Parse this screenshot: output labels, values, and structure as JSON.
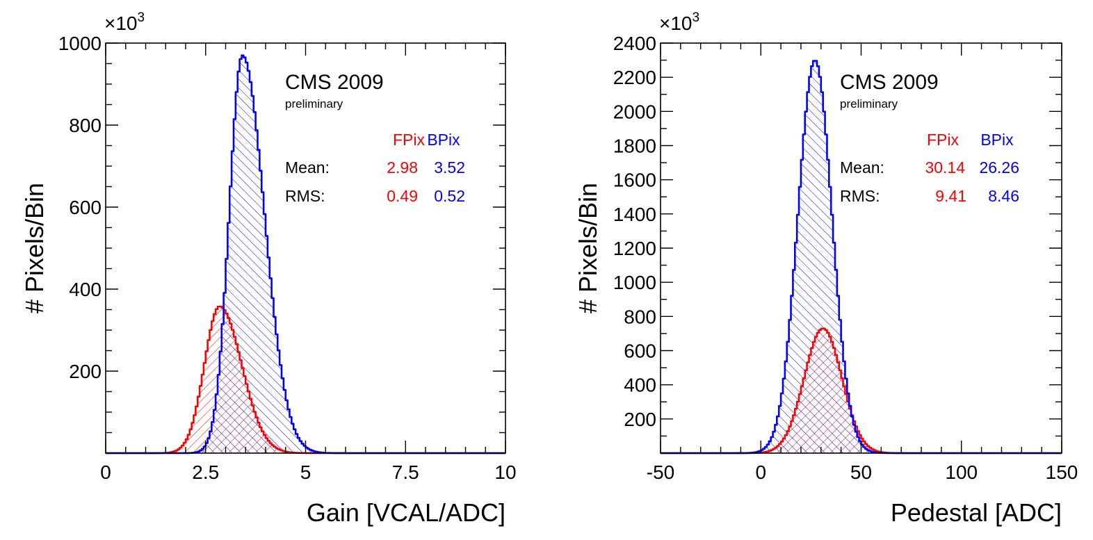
{
  "chart_data": [
    {
      "type": "histogram",
      "title": "CMS 2009",
      "subtitle": "preliminary",
      "xlabel": "Gain [VCAL/ADC]",
      "ylabel": "# Pixels/Bin",
      "y_multiplier": "×10",
      "y_multiplier_exp": "3",
      "xlim": [
        0,
        10
      ],
      "ylim": [
        0,
        1000
      ],
      "x_ticks": [
        0,
        2.5,
        5,
        7.5,
        10
      ],
      "x_tick_labels": [
        "0",
        "2.5",
        "5",
        "7.5",
        "10"
      ],
      "y_ticks": [
        200,
        400,
        600,
        800,
        1000
      ],
      "y_tick_labels": [
        "200",
        "400",
        "600",
        "800",
        "1000"
      ],
      "stats_header_label": "",
      "stats_rows": [
        "Mean:",
        "RMS:"
      ],
      "series": [
        {
          "name": "FPix",
          "color": "#ff0000",
          "peak": 358,
          "mean_label": "2.98",
          "rms_label": "0.49",
          "mean": 2.98,
          "rms": 0.49
        },
        {
          "name": "BPix",
          "color": "#0000ff",
          "peak": 970,
          "mean_label": "3.52",
          "rms_label": "0.52",
          "mean": 3.52,
          "rms": 0.52
        }
      ],
      "curves": [
        {
          "name": "FPix",
          "mode": 2.85,
          "sigmaL": 0.38,
          "sigmaR": 0.55
        },
        {
          "name": "BPix",
          "mode": 3.42,
          "sigmaL": 0.33,
          "sigmaR": 0.55
        }
      ]
    },
    {
      "type": "histogram",
      "title": "CMS 2009",
      "subtitle": "preliminary",
      "xlabel": "Pedestal [ADC]",
      "ylabel": "# Pixels/Bin",
      "y_multiplier": "×10",
      "y_multiplier_exp": "3",
      "xlim": [
        -50,
        150
      ],
      "ylim": [
        0,
        2400
      ],
      "x_ticks": [
        -50,
        0,
        50,
        100,
        150
      ],
      "x_tick_labels": [
        "-50",
        "0",
        "50",
        "100",
        "150"
      ],
      "y_ticks": [
        200,
        400,
        600,
        800,
        1000,
        1200,
        1400,
        1600,
        1800,
        2000,
        2200,
        2400
      ],
      "y_tick_labels": [
        "200",
        "400",
        "600",
        "800",
        "1000",
        "1200",
        "1400",
        "1600",
        "1800",
        "2000",
        "2200",
        "2400"
      ],
      "stats_rows": [
        "Mean:",
        "RMS:"
      ],
      "series": [
        {
          "name": "FPix",
          "color": "#ff0000",
          "peak": 730,
          "mean_label": "30.14",
          "rms_label": "9.41",
          "mean": 30.14,
          "rms": 9.41
        },
        {
          "name": "BPix",
          "color": "#0000ff",
          "peak": 2300,
          "mean_label": "26.26",
          "rms_label": "8.46",
          "mean": 26.26,
          "rms": 8.46
        }
      ],
      "curves": [
        {
          "name": "FPix",
          "mode": 31,
          "sigmaL": 9.4,
          "sigmaR": 9.4
        },
        {
          "name": "BPix",
          "mode": 27,
          "sigmaL": 8.5,
          "sigmaR": 8.5
        }
      ]
    }
  ]
}
